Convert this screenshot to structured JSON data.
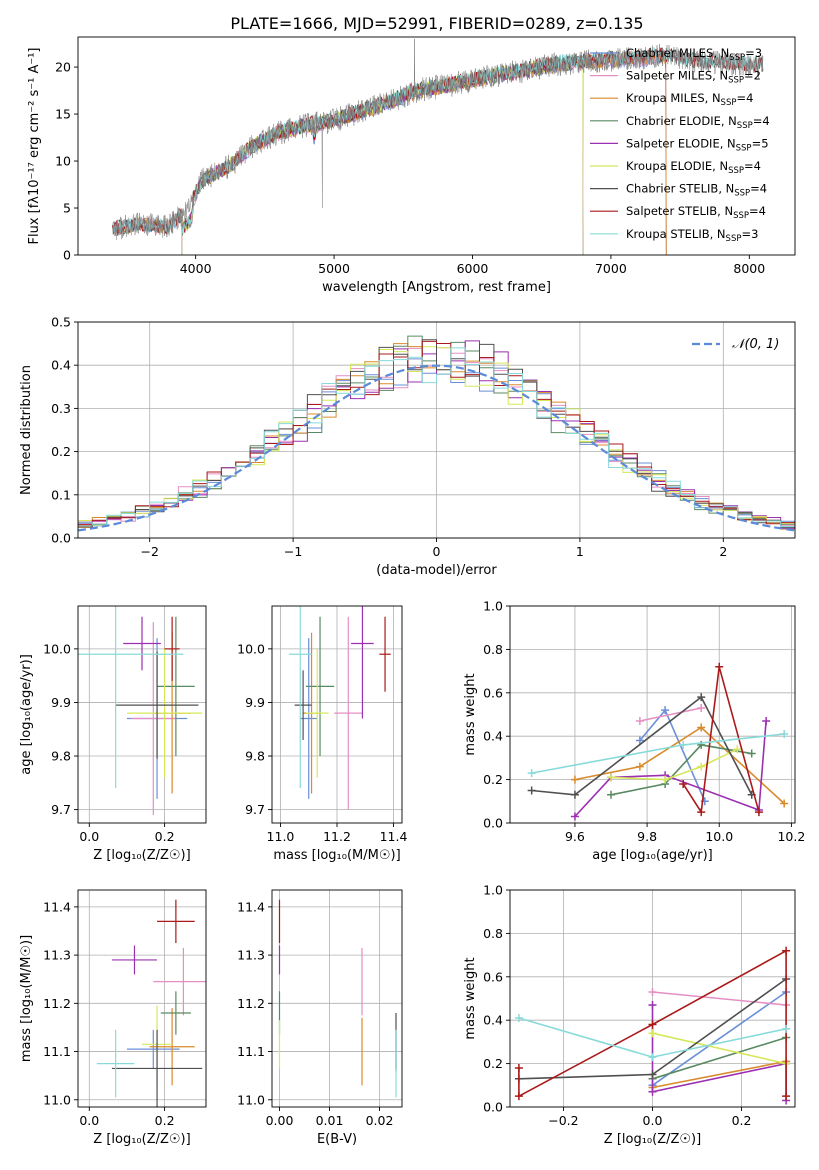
{
  "figure_title": "PLATE=1666, MJD=52991, FIBERID=0289, z=0.135",
  "series_colors": {
    "Chabrier MILES": "#6a8fd8",
    "Salpeter MILES": "#e58fc4",
    "Kroupa MILES": "#d98a2b",
    "Chabrier ELODIE": "#5a8a62",
    "Salpeter ELODIE": "#9b30b0",
    "Kroupa ELODIE": "#d6e85a",
    "Chabrier STELIB": "#505050",
    "Salpeter STELIB": "#aa1a1a",
    "Kroupa STELIB": "#88dada"
  },
  "chart_data": [
    {
      "id": "spectrum",
      "type": "line",
      "xlabel": "wavelength [Angstrom, rest frame]",
      "ylabel": "Flux [fλ10⁻¹⁷ erg cm⁻² s⁻¹ A⁻¹]",
      "xlim": [
        3150,
        8330
      ],
      "ylim": [
        0,
        23.2
      ],
      "xticks": [
        4000,
        5000,
        6000,
        7000,
        8000
      ],
      "yticks": [
        0,
        5,
        10,
        15,
        20
      ],
      "grid": false,
      "legend": "top-right",
      "legend_entries": [
        {
          "model": "Chabrier MILES",
          "n_ssp": 3
        },
        {
          "model": "Salpeter MILES",
          "n_ssp": 2
        },
        {
          "model": "Kroupa MILES",
          "n_ssp": 4
        },
        {
          "model": "Chabrier ELODIE",
          "n_ssp": 4
        },
        {
          "model": "Salpeter ELODIE",
          "n_ssp": 5
        },
        {
          "model": "Kroupa ELODIE",
          "n_ssp": 4
        },
        {
          "model": "Chabrier STELIB",
          "n_ssp": 4
        },
        {
          "model": "Salpeter STELIB",
          "n_ssp": 4
        },
        {
          "model": "Kroupa STELIB",
          "n_ssp": 3
        }
      ],
      "continuum_x": [
        3400,
        3600,
        3800,
        3950,
        4050,
        4250,
        4400,
        4600,
        4800,
        5000,
        5200,
        5400,
        5600,
        5800,
        6000,
        6200,
        6400,
        6600,
        6800,
        7000,
        7200,
        7400,
        7600,
        7800,
        8000,
        8100
      ],
      "continuum_y": [
        2.8,
        3.3,
        3.0,
        5.0,
        8.0,
        9.5,
        11.5,
        13.0,
        13.8,
        14.3,
        15.3,
        16.3,
        17.5,
        18.0,
        18.6,
        19.2,
        19.7,
        20.3,
        20.6,
        20.8,
        21.0,
        21.2,
        20.6,
        20.4,
        20.2,
        20.1
      ],
      "model_ranges": [
        {
          "name": "Chabrier MILES",
          "x": [
            3400,
            7400
          ]
        },
        {
          "name": "Salpeter MILES",
          "x": [
            3400,
            7400
          ]
        },
        {
          "name": "Kroupa MILES",
          "x": [
            3400,
            7400
          ]
        },
        {
          "name": "Chabrier ELODIE",
          "x": [
            3900,
            6800
          ]
        },
        {
          "name": "Salpeter ELODIE",
          "x": [
            3900,
            6800
          ]
        },
        {
          "name": "Kroupa ELODIE",
          "x": [
            3900,
            6800
          ]
        },
        {
          "name": "Chabrier STELIB",
          "x": [
            3400,
            8100
          ]
        },
        {
          "name": "Salpeter STELIB",
          "x": [
            3400,
            8100
          ]
        },
        {
          "name": "Kroupa STELIB",
          "x": [
            3400,
            8100
          ]
        }
      ]
    },
    {
      "id": "residuals",
      "type": "histogram",
      "xlabel": "(data-model)/error",
      "ylabel": "Normed distribution",
      "xlim": [
        -2.5,
        2.5
      ],
      "ylim": [
        0,
        0.5
      ],
      "xticks": [
        -2,
        -1,
        0,
        1,
        2
      ],
      "yticks": [
        0.0,
        0.1,
        0.2,
        0.3,
        0.4,
        0.5
      ],
      "grid": true,
      "legend": "top-right",
      "reference_label": "𝒩(0, 1)",
      "bin_edges": [
        -2.5,
        2.5
      ],
      "bin_count": 50
    },
    {
      "id": "age_vs_Z",
      "type": "errorbar",
      "xlabel": "Z [log₁₀(Z/Z☉)]",
      "ylabel": "age  [log₁₀(age/yr)]",
      "xlim": [
        -0.03,
        0.31
      ],
      "ylim": [
        9.675,
        10.08
      ],
      "xticks": [
        0.0,
        0.2
      ],
      "yticks": [
        9.7,
        9.8,
        9.9,
        10.0
      ],
      "grid": true,
      "points": [
        {
          "name": "Chabrier MILES",
          "x": 0.18,
          "xerr": 0.08,
          "y": 9.87,
          "yerr": 0.15
        },
        {
          "name": "Salpeter MILES",
          "x": 0.17,
          "xerr": 0.06,
          "y": 9.87,
          "yerr": 0.18
        },
        {
          "name": "Kroupa MILES",
          "x": 0.22,
          "xerr": 0.05,
          "y": 9.88,
          "yerr": 0.15
        },
        {
          "name": "Chabrier ELODIE",
          "x": 0.23,
          "xerr": 0.05,
          "y": 9.93,
          "yerr": 0.13
        },
        {
          "name": "Salpeter ELODIE",
          "x": 0.14,
          "xerr": 0.05,
          "y": 10.01,
          "yerr": 0.05
        },
        {
          "name": "Kroupa ELODIE",
          "x": 0.2,
          "xerr": 0.1,
          "y": 9.88,
          "yerr": 0.12
        },
        {
          "name": "Chabrier STELIB",
          "x": 0.18,
          "xerr": 0.11,
          "y": 9.895,
          "yerr": 0.1
        },
        {
          "name": "Salpeter STELIB",
          "x": 0.22,
          "xerr": 0.02,
          "y": 10.0,
          "yerr": 0.06
        },
        {
          "name": "Kroupa STELIB",
          "x": 0.07,
          "xerr": 0.18,
          "y": 9.99,
          "yerr": 0.25
        }
      ]
    },
    {
      "id": "age_vs_mass",
      "type": "errorbar",
      "xlabel": "mass [log₁₀(M/M☉)]",
      "ylabel": "",
      "xlim": [
        10.97,
        11.43
      ],
      "ylim": [
        9.675,
        10.08
      ],
      "xticks": [
        11.0,
        11.2,
        11.4
      ],
      "yticks": [
        9.7,
        9.8,
        9.9,
        10.0
      ],
      "grid": true,
      "points": [
        {
          "name": "Chabrier MILES",
          "x": 11.1,
          "xerr": 0.03,
          "y": 9.87,
          "yerr": 0.15
        },
        {
          "name": "Salpeter MILES",
          "x": 11.24,
          "xerr": 0.05,
          "y": 9.88,
          "yerr": 0.18
        },
        {
          "name": "Kroupa MILES",
          "x": 11.11,
          "xerr": 0.03,
          "y": 9.88,
          "yerr": 0.15
        },
        {
          "name": "Chabrier ELODIE",
          "x": 11.14,
          "xerr": 0.05,
          "y": 9.93,
          "yerr": 0.13
        },
        {
          "name": "Salpeter ELODIE",
          "x": 11.29,
          "xerr": 0.04,
          "y": 10.01,
          "yerr": 0.14
        },
        {
          "name": "Kroupa ELODIE",
          "x": 11.13,
          "xerr": 0.04,
          "y": 9.88,
          "yerr": 0.12
        },
        {
          "name": "Chabrier STELIB",
          "x": 11.08,
          "xerr": 0.03,
          "y": 9.895,
          "yerr": 0.065
        },
        {
          "name": "Salpeter STELIB",
          "x": 11.37,
          "xerr": 0.02,
          "y": 9.99,
          "yerr": 0.07
        },
        {
          "name": "Kroupa STELIB",
          "x": 11.07,
          "xerr": 0.04,
          "y": 9.99,
          "yerr": 0.25
        }
      ]
    },
    {
      "id": "mass_weight_vs_age",
      "type": "line",
      "xlabel": "age  [log₁₀(age/yr)]",
      "ylabel": "mass weight",
      "xlim": [
        9.42,
        10.21
      ],
      "ylim": [
        0,
        1.0
      ],
      "xticks": [
        9.6,
        9.8,
        10.0,
        10.2
      ],
      "yticks": [
        0.0,
        0.2,
        0.4,
        0.6,
        0.8,
        1.0
      ],
      "grid": true,
      "series": [
        {
          "name": "Chabrier MILES",
          "x": [
            9.78,
            9.85,
            9.96
          ],
          "y": [
            0.38,
            0.52,
            0.1
          ]
        },
        {
          "name": "Salpeter MILES",
          "x": [
            9.78,
            9.95
          ],
          "y": [
            0.47,
            0.53
          ]
        },
        {
          "name": "Kroupa MILES",
          "x": [
            9.6,
            9.78,
            9.95,
            10.18
          ],
          "y": [
            0.2,
            0.26,
            0.44,
            0.09
          ]
        },
        {
          "name": "Chabrier ELODIE",
          "x": [
            9.7,
            9.85,
            9.95,
            10.09
          ],
          "y": [
            0.13,
            0.18,
            0.36,
            0.32
          ]
        },
        {
          "name": "Salpeter ELODIE",
          "x": [
            9.6,
            9.7,
            9.85,
            10.11,
            10.13
          ],
          "y": [
            0.03,
            0.21,
            0.22,
            0.06,
            0.47
          ]
        },
        {
          "name": "Kroupa ELODIE",
          "x": [
            9.7,
            9.85,
            9.95,
            10.05
          ],
          "y": [
            0.21,
            0.2,
            0.26,
            0.34
          ]
        },
        {
          "name": "Chabrier STELIB",
          "x": [
            9.48,
            9.6,
            9.95,
            10.09
          ],
          "y": [
            0.15,
            0.13,
            0.58,
            0.13
          ]
        },
        {
          "name": "Salpeter STELIB",
          "x": [
            9.9,
            9.95,
            10.0,
            10.11
          ],
          "y": [
            0.18,
            0.05,
            0.72,
            0.05
          ]
        },
        {
          "name": "Kroupa STELIB",
          "x": [
            9.48,
            9.9,
            10.18
          ],
          "y": [
            0.23,
            0.36,
            0.41
          ]
        }
      ]
    },
    {
      "id": "mass_vs_Z",
      "type": "errorbar",
      "xlabel": "Z [log₁₀(Z/Z☉)]",
      "ylabel": "mass [log₁₀(M/M☉)]",
      "xlim": [
        -0.03,
        0.31
      ],
      "ylim": [
        10.985,
        11.435
      ],
      "xticks": [
        0.0,
        0.2
      ],
      "yticks": [
        11.0,
        11.1,
        11.2,
        11.3,
        11.4
      ],
      "grid": true,
      "points": [
        {
          "name": "Chabrier MILES",
          "x": 0.17,
          "xerr": 0.07,
          "y": 11.105,
          "yerr": 0.04
        },
        {
          "name": "Salpeter MILES",
          "x": 0.25,
          "xerr": 0.08,
          "y": 11.245,
          "yerr": 0.07
        },
        {
          "name": "Kroupa MILES",
          "x": 0.22,
          "xerr": 0.06,
          "y": 11.11,
          "yerr": 0.08
        },
        {
          "name": "Chabrier ELODIE",
          "x": 0.23,
          "xerr": 0.04,
          "y": 11.18,
          "yerr": 0.045
        },
        {
          "name": "Salpeter ELODIE",
          "x": 0.12,
          "xerr": 0.06,
          "y": 11.29,
          "yerr": 0.03
        },
        {
          "name": "Kroupa ELODIE",
          "x": 0.18,
          "xerr": 0.04,
          "y": 11.115,
          "yerr": 0.08
        },
        {
          "name": "Chabrier STELIB",
          "x": 0.18,
          "xerr": 0.12,
          "y": 11.065,
          "yerr": 0.08
        },
        {
          "name": "Salpeter STELIB",
          "x": 0.23,
          "xerr": 0.05,
          "y": 11.37,
          "yerr": 0.045
        },
        {
          "name": "Kroupa STELIB",
          "x": 0.07,
          "xerr": 0.05,
          "y": 11.075,
          "yerr": 0.07
        }
      ]
    },
    {
      "id": "mass_vs_ebv",
      "type": "errorbar",
      "xlabel": "E(B-V)",
      "ylabel": "",
      "xlim": [
        -0.0015,
        0.0245
      ],
      "ylim": [
        10.985,
        11.435
      ],
      "xticks": [
        0.0,
        0.01,
        0.02
      ],
      "yticks": [
        11.0,
        11.1,
        11.2,
        11.3,
        11.4
      ],
      "grid": true,
      "points": [
        {
          "name": "Chabrier MILES",
          "x": 0.0233,
          "xerr": 0,
          "y": 11.105,
          "yerr": 0.04
        },
        {
          "name": "Salpeter MILES",
          "x": 0.0165,
          "xerr": 0,
          "y": 11.245,
          "yerr": 0.07
        },
        {
          "name": "Kroupa MILES",
          "x": 0.0165,
          "xerr": 0,
          "y": 11.1,
          "yerr": 0.07
        },
        {
          "name": "Chabrier ELODIE",
          "x": 0.0,
          "xerr": 0,
          "y": 11.18,
          "yerr": 0.045
        },
        {
          "name": "Salpeter ELODIE",
          "x": 0.0,
          "xerr": 0,
          "y": 11.29,
          "yerr": 0.03
        },
        {
          "name": "Kroupa ELODIE",
          "x": 0.0,
          "xerr": 0,
          "y": 11.115,
          "yerr": 0.05
        },
        {
          "name": "Chabrier STELIB",
          "x": 0.0233,
          "xerr": 0,
          "y": 11.12,
          "yerr": 0.06
        },
        {
          "name": "Salpeter STELIB",
          "x": 0.0,
          "xerr": 0,
          "y": 11.37,
          "yerr": 0.045
        },
        {
          "name": "Kroupa STELIB",
          "x": 0.0233,
          "xerr": 0,
          "y": 11.075,
          "yerr": 0.07
        }
      ]
    },
    {
      "id": "mass_weight_vs_Z",
      "type": "line",
      "xlabel": "Z [log₁₀(Z/Z☉)]",
      "ylabel": "mass weight",
      "xlim": [
        -0.32,
        0.32
      ],
      "ylim": [
        0,
        1.0
      ],
      "xticks": [
        -0.2,
        0.0,
        0.2
      ],
      "yticks": [
        0.0,
        0.2,
        0.4,
        0.6,
        0.8,
        1.0
      ],
      "grid": true,
      "series": [
        {
          "name": "Chabrier MILES",
          "x": [
            0.0,
            0.3
          ],
          "y": [
            0.1,
            0.53
          ]
        },
        {
          "name": "Salpeter MILES",
          "x": [
            0.0,
            0.3
          ],
          "y": [
            0.53,
            0.47
          ]
        },
        {
          "name": "Kroupa MILES",
          "x": [
            0.0,
            0.3
          ],
          "y": [
            0.09,
            0.21
          ]
        },
        {
          "name": "Chabrier ELODIE",
          "x": [
            0.0,
            0.3
          ],
          "y": [
            0.13,
            0.32
          ]
        },
        {
          "name": "Salpeter ELODIE",
          "x": [
            0.0,
            0.0,
            0.3,
            0.3
          ],
          "y": [
            0.47,
            0.07,
            0.2,
            0.03
          ]
        },
        {
          "name": "Kroupa ELODIE",
          "x": [
            0.0,
            0.3
          ],
          "y": [
            0.34,
            0.2
          ]
        },
        {
          "name": "Chabrier STELIB",
          "x": [
            -0.3,
            0.0,
            0.3
          ],
          "y": [
            0.13,
            0.15,
            0.59
          ]
        },
        {
          "name": "Salpeter STELIB",
          "x": [
            -0.3,
            -0.3,
            0.0,
            0.3,
            0.3
          ],
          "y": [
            0.18,
            0.05,
            0.38,
            0.72,
            0.05
          ]
        },
        {
          "name": "Kroupa STELIB",
          "x": [
            -0.3,
            0.0,
            0.3
          ],
          "y": [
            0.41,
            0.23,
            0.36
          ]
        }
      ]
    }
  ]
}
